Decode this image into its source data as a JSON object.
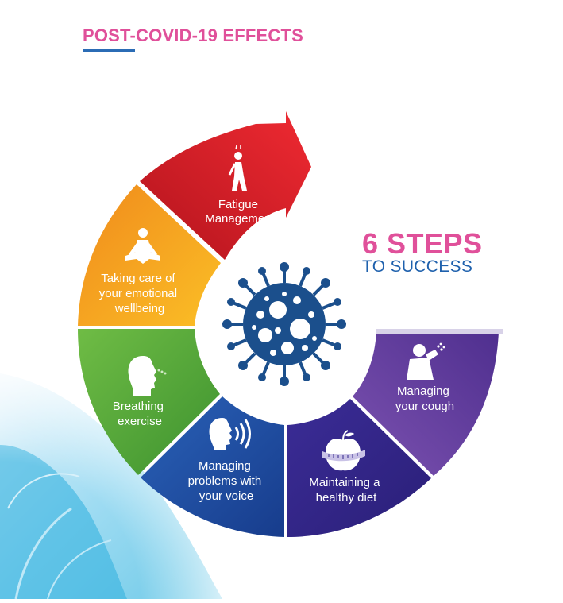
{
  "header": {
    "title": "POST-COVID-19 EFFECTS"
  },
  "tagline": {
    "big": "6 STEPS",
    "small": "TO SUCCESS"
  },
  "colors": {
    "accent_pink": "#e0509a",
    "accent_blue": "#1f61ad",
    "virus": "#1b4f8c"
  },
  "steps": [
    {
      "lines": [
        "Fatigue",
        "Management"
      ],
      "icon": "walking-person-icon",
      "color": "#d9222a"
    },
    {
      "lines": [
        "Taking care of",
        "your emotional",
        "wellbeing"
      ],
      "icon": "meditation-icon",
      "color": "#f3a620"
    },
    {
      "lines": [
        "Breathing",
        "exercise"
      ],
      "icon": "breathing-head-icon",
      "color": "#55a838"
    },
    {
      "lines": [
        "Managing",
        "problems with",
        "your voice"
      ],
      "icon": "speaking-head-icon",
      "color": "#1f4ea3"
    },
    {
      "lines": [
        "Maintaining a",
        "healthy diet"
      ],
      "icon": "apple-measuring-tape-icon",
      "color": "#33258a"
    },
    {
      "lines": [
        "Managing",
        "your cough"
      ],
      "icon": "coughing-person-icon",
      "color": "#6a3f9e"
    }
  ],
  "center": {
    "icon": "virus-icon"
  }
}
